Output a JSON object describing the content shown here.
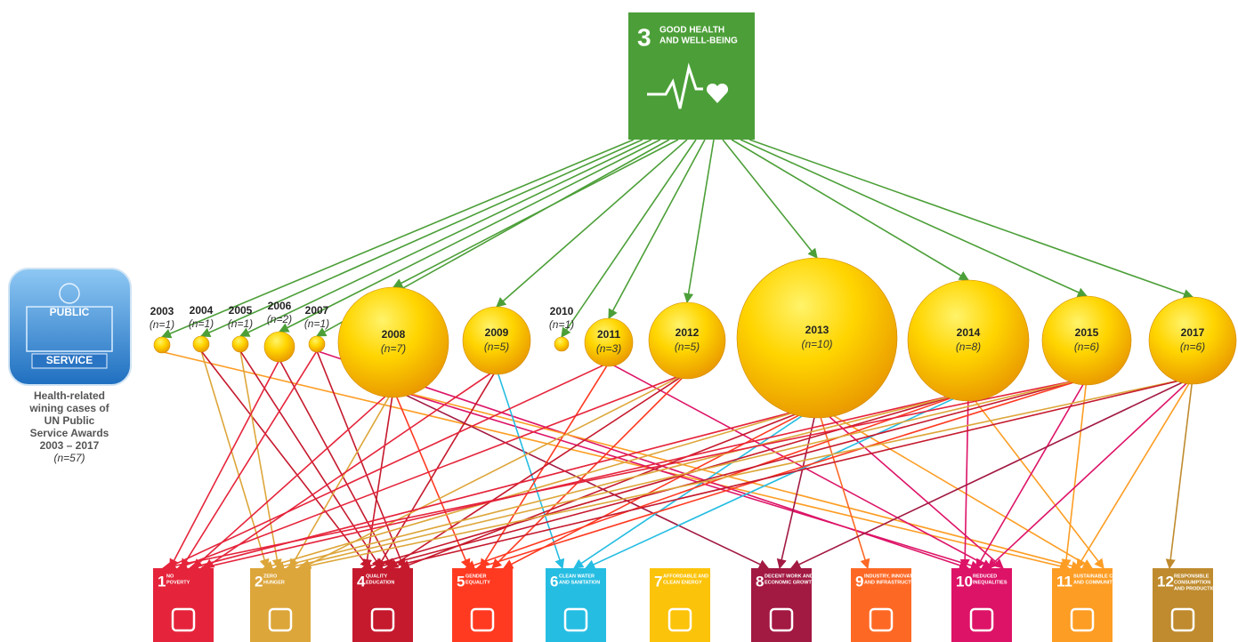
{
  "sdg3": {
    "number": "3",
    "label": [
      "GOOD HEALTH",
      "AND WELL-BEING"
    ]
  },
  "logo": {
    "top": "PUBLIC",
    "bottom": "SERVICE"
  },
  "caption": {
    "lines": [
      "Health-related",
      "wining cases of",
      "UN Public",
      "Service Awards",
      "2003 – 2017"
    ],
    "count": "(n=57)"
  },
  "years": [
    {
      "year": "2003",
      "count": "(n=1)"
    },
    {
      "year": "2004",
      "count": "(n=1)"
    },
    {
      "year": "2005",
      "count": "(n=1)"
    },
    {
      "year": "2006",
      "count": "(n=2)"
    },
    {
      "year": "2007",
      "count": "(n=1)"
    },
    {
      "year": "2008",
      "count": "(n=7)"
    },
    {
      "year": "2009",
      "count": "(n=5)"
    },
    {
      "year": "2010",
      "count": "(n=1)"
    },
    {
      "year": "2011",
      "count": "(n=3)"
    },
    {
      "year": "2012",
      "count": "(n=5)"
    },
    {
      "year": "2013",
      "count": "(n=10)"
    },
    {
      "year": "2014",
      "count": "(n=8)"
    },
    {
      "year": "2015",
      "count": "(n=6)"
    },
    {
      "year": "2017",
      "count": "(n=6)"
    }
  ],
  "goals": [
    {
      "number": "1",
      "label": [
        "NO",
        "POVERTY"
      ]
    },
    {
      "number": "2",
      "label": [
        "ZERO",
        "HUNGER"
      ]
    },
    {
      "number": "4",
      "label": [
        "QUALITY",
        "EDUCATION"
      ]
    },
    {
      "number": "5",
      "label": [
        "GENDER",
        "EQUALITY"
      ]
    },
    {
      "number": "6",
      "label": [
        "CLEAN WATER",
        "AND SANITATION"
      ]
    },
    {
      "number": "7",
      "label": [
        "AFFORDABLE AND",
        "CLEAN ENERGY"
      ]
    },
    {
      "number": "8",
      "label": [
        "DECENT WORK AND",
        "ECONOMIC GROWTH"
      ]
    },
    {
      "number": "9",
      "label": [
        "INDUSTRY, INNOVATION",
        "AND INFRASTRUCTURE"
      ]
    },
    {
      "number": "10",
      "label": [
        "REDUCED",
        "INEQUALITIES"
      ]
    },
    {
      "number": "11",
      "label": [
        "SUSTAINABLE CITIES",
        "AND COMMUNITIES"
      ]
    },
    {
      "number": "12",
      "label": [
        "RESPONSIBLE",
        "CONSUMPTION",
        "AND PRODUCTION"
      ]
    }
  ]
}
